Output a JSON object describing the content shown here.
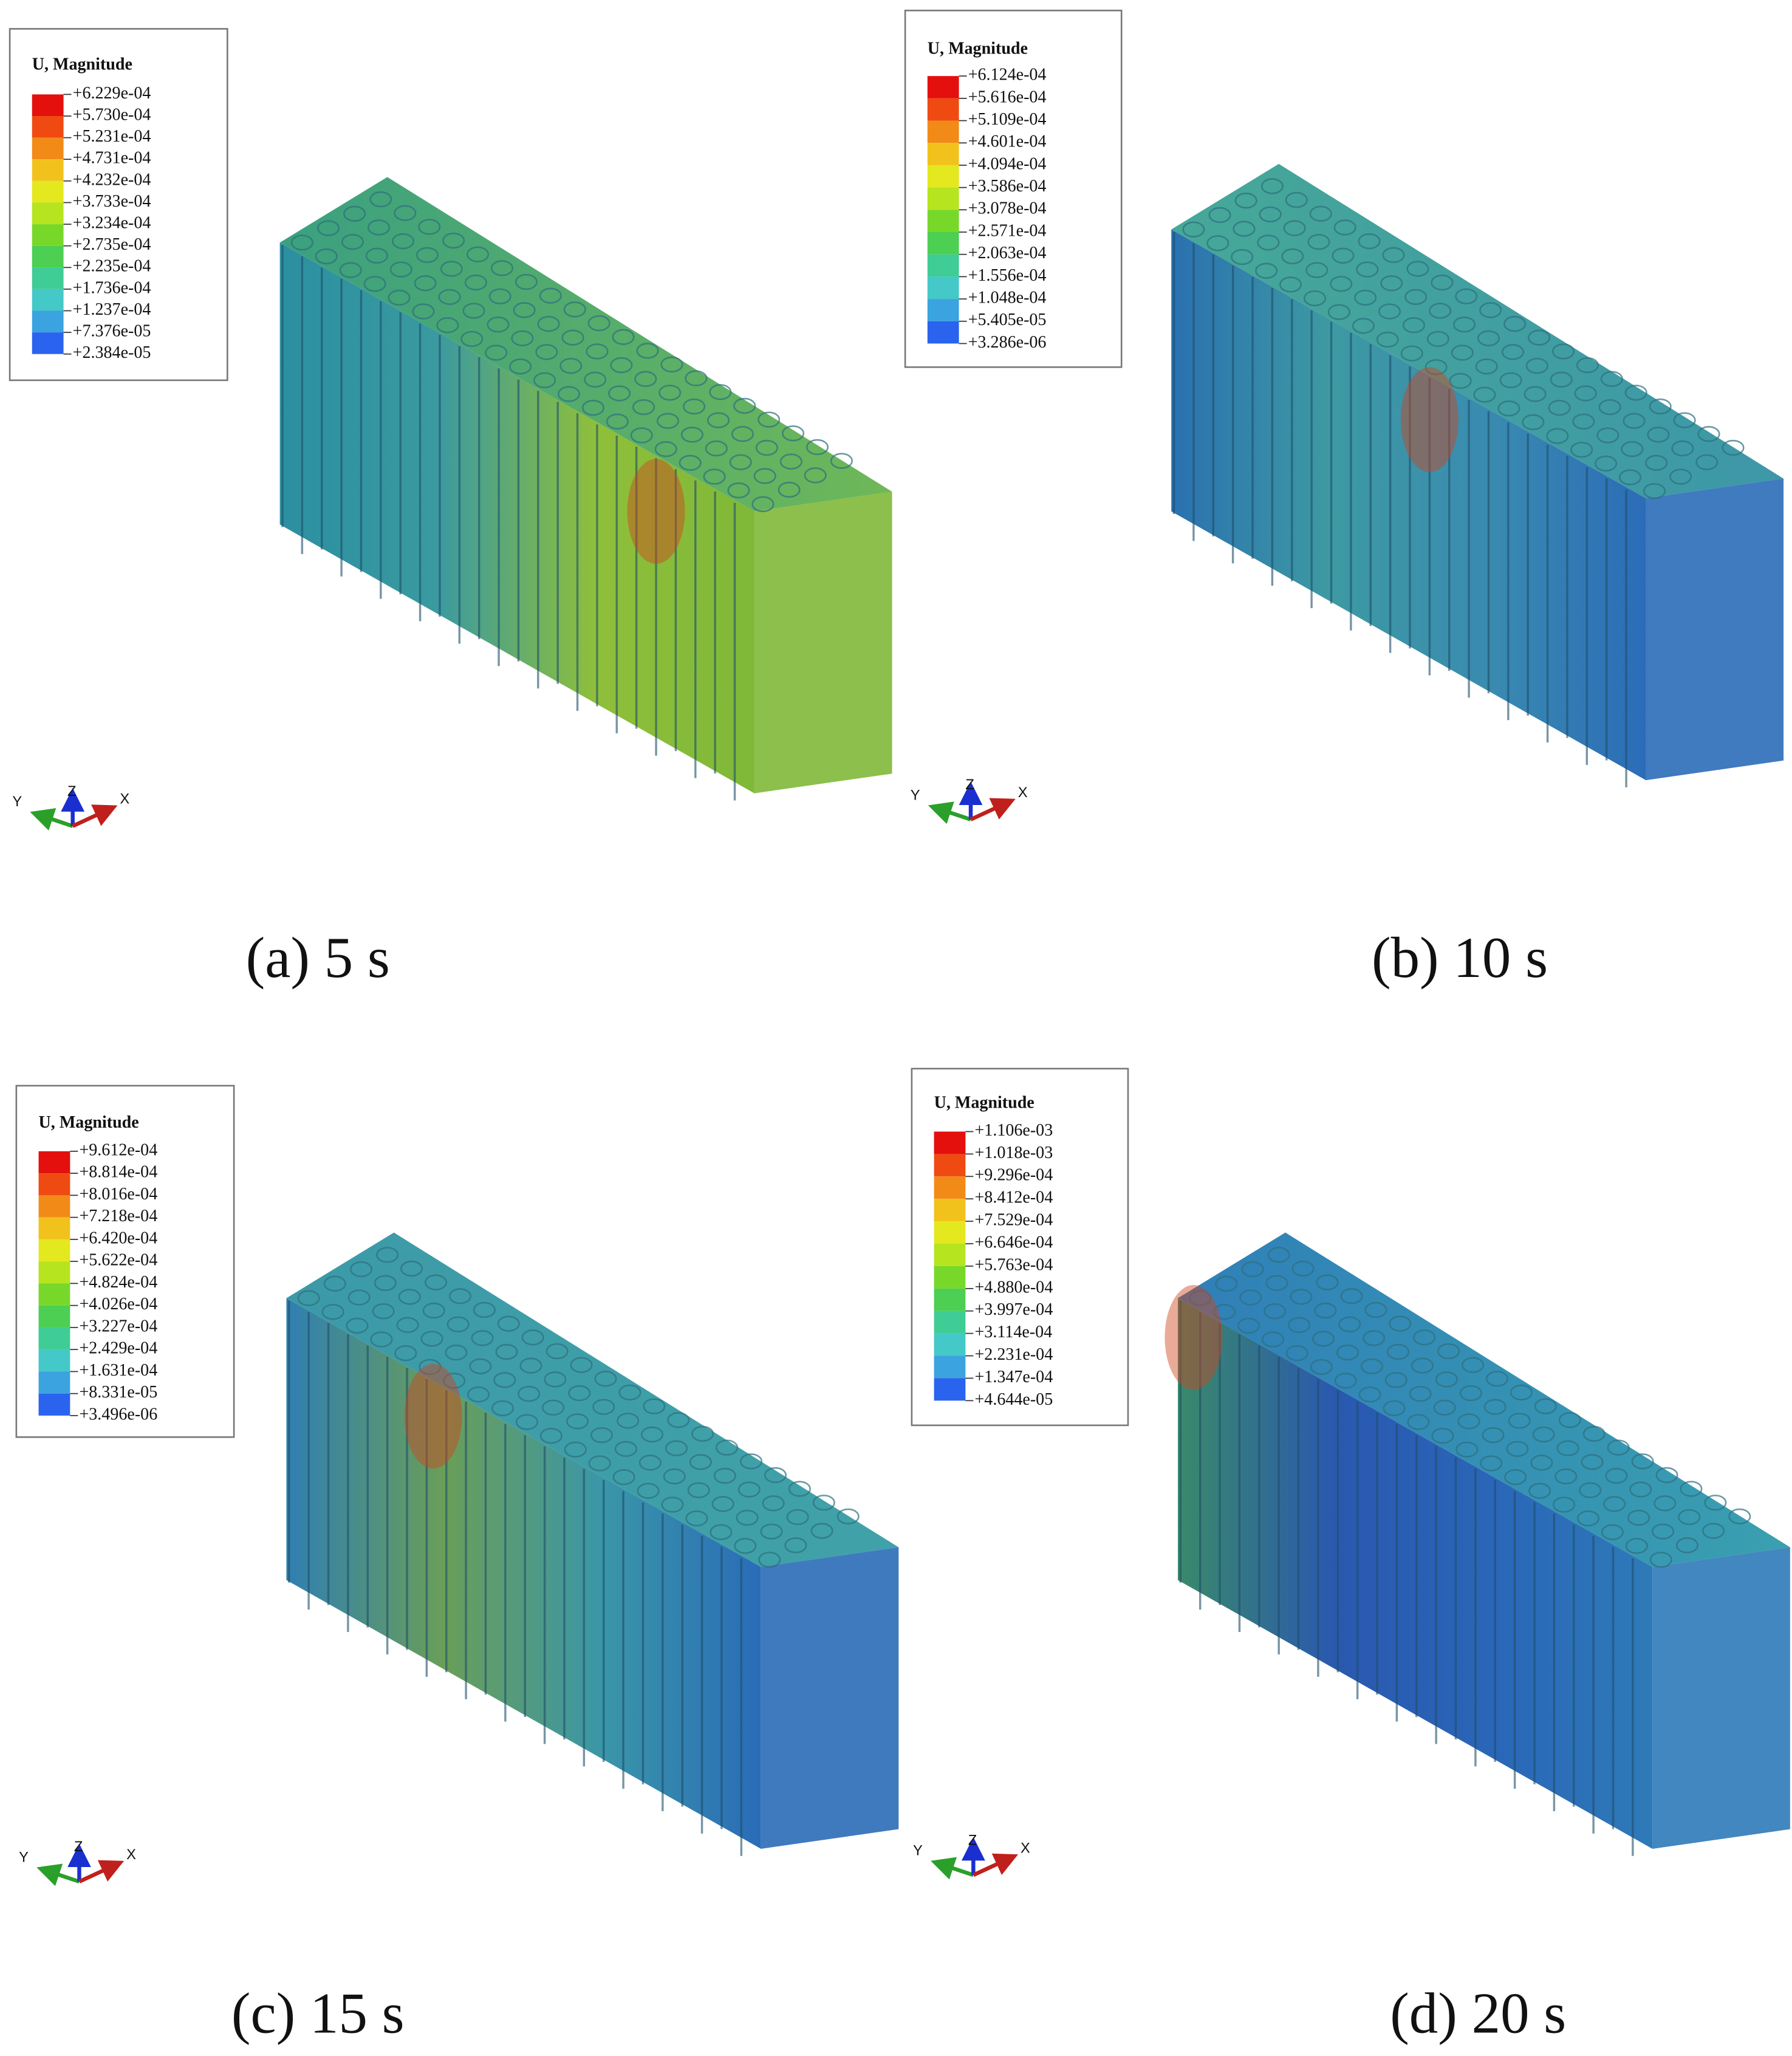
{
  "panels": [
    {
      "legend_title": "U, Magnitude",
      "legend_values": [
        "+6.229e-04",
        "+5.730e-04",
        "+5.231e-04",
        "+4.731e-04",
        "+4.232e-04",
        "+3.733e-04",
        "+3.234e-04",
        "+2.735e-04",
        "+2.235e-04",
        "+1.736e-04",
        "+1.237e-04",
        "+7.376e-05",
        "+2.384e-05"
      ],
      "axes": [
        "Y",
        "Z",
        "X"
      ],
      "caption": "(a) 5 s"
    },
    {
      "legend_title": "U, Magnitude",
      "legend_values": [
        "+6.124e-04",
        "+5.616e-04",
        "+5.109e-04",
        "+4.601e-04",
        "+4.094e-04",
        "+3.586e-04",
        "+3.078e-04",
        "+2.571e-04",
        "+2.063e-04",
        "+1.556e-04",
        "+1.048e-04",
        "+5.405e-05",
        "+3.286e-06"
      ],
      "axes": [
        "Y",
        "Z",
        "X"
      ],
      "caption": "(b) 10 s"
    },
    {
      "legend_title": "U, Magnitude",
      "legend_values": [
        "+9.612e-04",
        "+8.814e-04",
        "+8.016e-04",
        "+7.218e-04",
        "+6.420e-04",
        "+5.622e-04",
        "+4.824e-04",
        "+4.026e-04",
        "+3.227e-04",
        "+2.429e-04",
        "+1.631e-04",
        "+8.331e-05",
        "+3.496e-06"
      ],
      "axes": [
        "Y",
        "Z",
        "X"
      ],
      "caption": "(c) 15 s"
    },
    {
      "legend_title": "U, Magnitude",
      "legend_values": [
        "+1.106e-03",
        "+1.018e-03",
        "+9.296e-04",
        "+8.412e-04",
        "+7.529e-04",
        "+6.646e-04",
        "+5.763e-04",
        "+4.880e-04",
        "+3.997e-04",
        "+3.114e-04",
        "+2.231e-04",
        "+1.347e-04",
        "+4.644e-05"
      ],
      "axes": [
        "Y",
        "Z",
        "X"
      ],
      "caption": "(d) 20 s"
    }
  ]
}
